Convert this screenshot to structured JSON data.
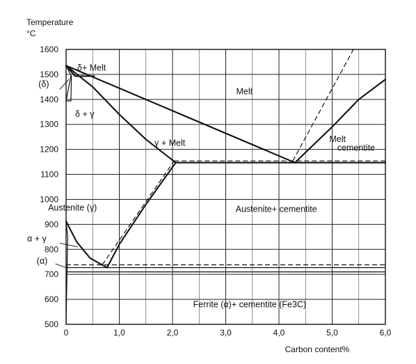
{
  "chart_data": {
    "type": "line",
    "title": "",
    "ylabel": "Temperature",
    "yunit": "°C",
    "xlabel": "Carbon content%",
    "xlim": [
      0,
      6.0
    ],
    "ylim": [
      500,
      1600
    ],
    "grid": true,
    "x_ticks": [
      {
        "value": 0,
        "label": "0"
      },
      {
        "value": 1.0,
        "label": "1,0"
      },
      {
        "value": 2.0,
        "label": "2,0"
      },
      {
        "value": 3.0,
        "label": "3,0"
      },
      {
        "value": 4.0,
        "label": "4,0"
      },
      {
        "value": 5.0,
        "label": "5,0"
      },
      {
        "value": 6.0,
        "label": "6,0"
      }
    ],
    "y_ticks": [
      {
        "value": 500,
        "label": "500"
      },
      {
        "value": 600,
        "label": "600"
      },
      {
        "value": 700,
        "label": "700"
      },
      {
        "value": 800,
        "label": "800"
      },
      {
        "value": 900,
        "label": "900"
      },
      {
        "value": 1000,
        "label": "1000"
      },
      {
        "value": 1100,
        "label": "1100"
      },
      {
        "value": 1200,
        "label": "1200"
      },
      {
        "value": 1300,
        "label": "1300"
      },
      {
        "value": 1400,
        "label": "1400"
      },
      {
        "value": 1500,
        "label": "1500"
      },
      {
        "value": 1600,
        "label": "1600"
      }
    ],
    "series": [
      {
        "style": "solid",
        "points": [
          [
            0,
            1535
          ],
          [
            4.3,
            1147
          ]
        ]
      },
      {
        "style": "solid",
        "points": [
          [
            4.3,
            1147
          ],
          [
            5.0,
            1290
          ],
          [
            5.5,
            1400
          ],
          [
            6.0,
            1480
          ]
        ]
      },
      {
        "style": "solid",
        "points": [
          [
            0,
            1535
          ],
          [
            0.5,
            1450
          ],
          [
            1.0,
            1340
          ],
          [
            1.5,
            1240
          ],
          [
            2.06,
            1147
          ]
        ]
      },
      {
        "style": "solid",
        "points": [
          [
            0.77,
            727
          ],
          [
            1.0,
            820
          ],
          [
            1.5,
            980
          ],
          [
            2.06,
            1147
          ]
        ]
      },
      {
        "style": "solid",
        "points": [
          [
            0,
            912
          ],
          [
            0.2,
            830
          ],
          [
            0.45,
            765
          ],
          [
            0.77,
            727
          ]
        ]
      },
      {
        "style": "solid",
        "points": [
          [
            2.06,
            1147
          ],
          [
            6.0,
            1147
          ]
        ]
      },
      {
        "style": "solid",
        "points": [
          [
            0,
            1535
          ],
          [
            0.17,
            1493
          ],
          [
            0.53,
            1493
          ]
        ]
      },
      {
        "style": "thin",
        "points": [
          [
            0,
            1535
          ],
          [
            0.1,
            1493
          ],
          [
            0.09,
            1394
          ],
          [
            0,
            1394
          ]
        ]
      },
      {
        "style": "thin",
        "points": [
          [
            0,
            1394
          ],
          [
            0.09,
            1493
          ]
        ]
      },
      {
        "style": "thin",
        "points": [
          [
            0,
            727
          ],
          [
            6.0,
            727
          ]
        ]
      },
      {
        "style": "thin",
        "points": [
          [
            0,
            710
          ],
          [
            6.0,
            710
          ]
        ]
      },
      {
        "style": "thin",
        "points": [
          [
            0.02,
            727
          ],
          [
            0.008,
            600
          ],
          [
            0,
            500
          ]
        ]
      },
      {
        "style": "thin",
        "points": [
          [
            0,
            912
          ],
          [
            0.03,
            850
          ],
          [
            0.02,
            727
          ]
        ]
      },
      {
        "style": "dashed",
        "points": [
          [
            2.03,
            1154
          ],
          [
            6.0,
            1154
          ]
        ]
      },
      {
        "style": "dashed",
        "points": [
          [
            0,
            738
          ],
          [
            6.0,
            738
          ]
        ]
      },
      {
        "style": "dashed",
        "points": [
          [
            0.68,
            738
          ],
          [
            2.03,
            1154
          ]
        ]
      },
      {
        "style": "dashed",
        "points": [
          [
            4.26,
            1154
          ],
          [
            5.4,
            1600
          ]
        ]
      }
    ],
    "annotations": [
      {
        "text": "Melt",
        "x": 3.35,
        "y": 1420
      },
      {
        "text": "δ+ Melt",
        "x": 0.48,
        "y": 1515
      },
      {
        "text": "(δ)",
        "x": -0.42,
        "y": 1450
      },
      {
        "text": "δ + γ",
        "x": 0.35,
        "y": 1330
      },
      {
        "text": "γ + Melt",
        "x": 1.95,
        "y": 1215
      },
      {
        "text": "Melt",
        "x": 5.1,
        "y": 1230
      },
      {
        "text": "cementite",
        "x": 5.45,
        "y": 1195
      },
      {
        "text": "Austenite (γ)",
        "x": 0.12,
        "y": 955
      },
      {
        "text": "Austenite+ cementite",
        "x": 3.95,
        "y": 950
      },
      {
        "text": "α + γ",
        "x": -0.55,
        "y": 832
      },
      {
        "text": "(α)",
        "x": -0.45,
        "y": 742
      },
      {
        "text": "Ferrite   (α)+ cementite   (Fe3C)",
        "x": 3.45,
        "y": 568
      }
    ],
    "leaders": [
      {
        "from": [
          -0.12,
          1440
        ],
        "to": [
          0.05,
          1480
        ]
      },
      {
        "from": [
          -0.12,
          825
        ],
        "to": [
          0.22,
          810
        ]
      },
      {
        "from": [
          -0.2,
          742
        ],
        "to": [
          0.03,
          725
        ]
      }
    ]
  }
}
